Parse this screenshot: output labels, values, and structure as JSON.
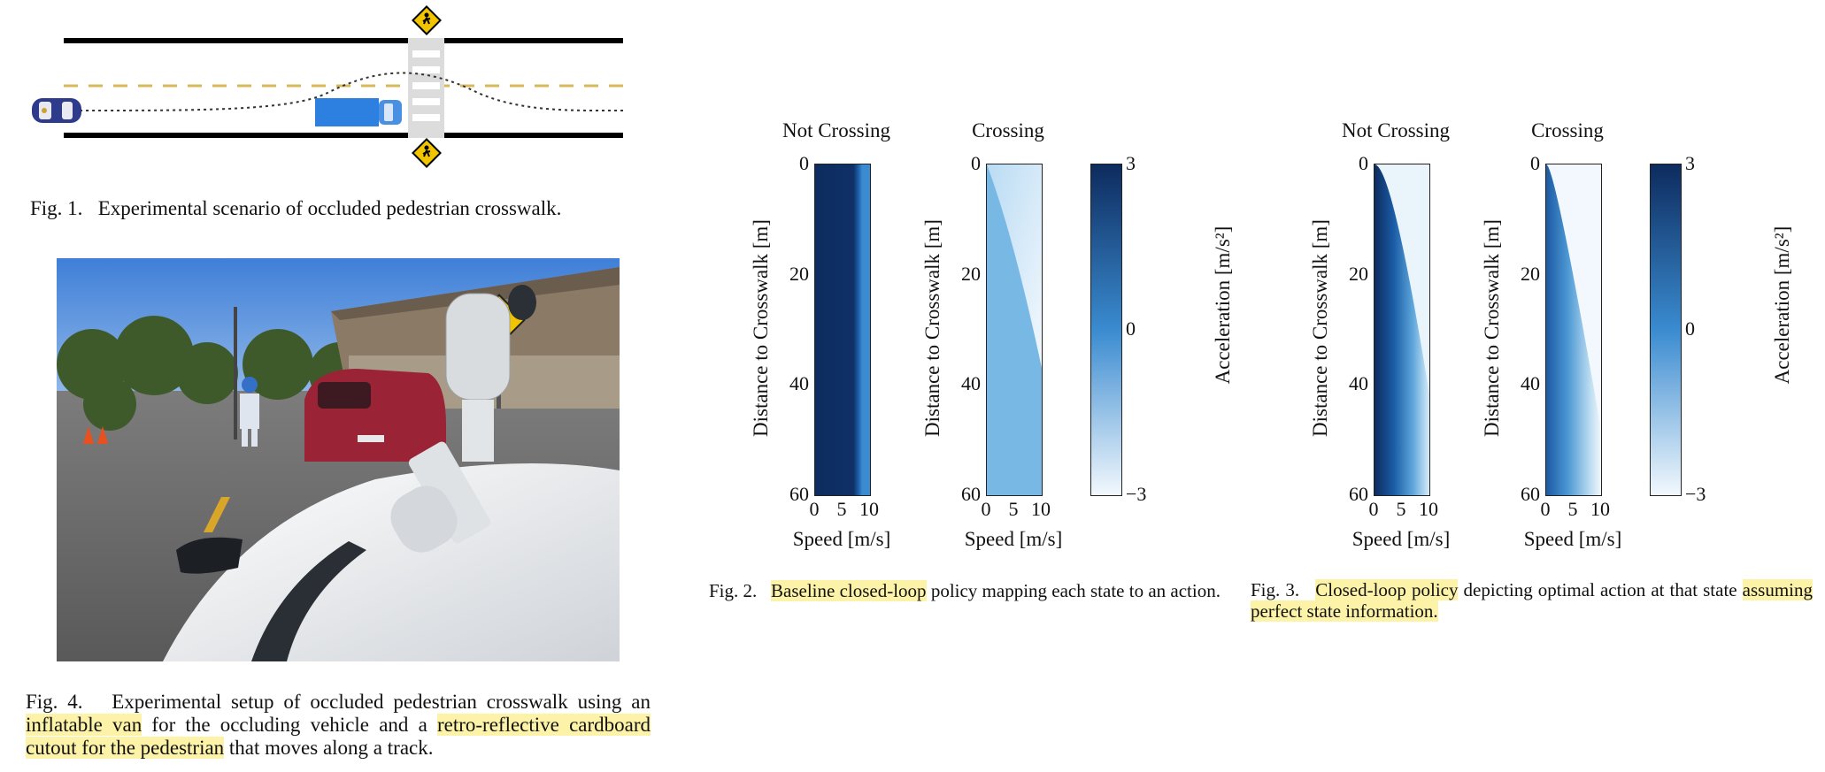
{
  "fig1": {
    "caption_label": "Fig. 1.",
    "caption_text": "Experimental scenario of occluded pedestrian crosswalk."
  },
  "fig4": {
    "caption_label": "Fig. 4.",
    "caption_parts": [
      {
        "text": "Experimental setup of occluded pedestrian crosswalk using an ",
        "hl": false
      },
      {
        "text": "inflatable van",
        "hl": true
      },
      {
        "text": " for the occluding vehicle and a ",
        "hl": false
      },
      {
        "text": "retro-reflective cardboard cutout for the pedestrian",
        "hl": true
      },
      {
        "text": " that moves along a track.",
        "hl": false
      }
    ]
  },
  "fig2": {
    "caption_label": "Fig. 2.",
    "caption_hl": "Baseline closed-loop",
    "caption_rest": " policy mapping each state to an action.",
    "panels": [
      {
        "title": "Not Crossing",
        "ylabel": "Distance to Crosswalk [m]",
        "xlabel": "Speed [m/s]"
      },
      {
        "title": "Crossing",
        "ylabel": "Distance to Crosswalk [m]",
        "xlabel": "Speed [m/s]"
      }
    ],
    "colorbar": {
      "label": "Acceleration [m/s²]",
      "ticks": [
        "3",
        "0",
        "−3"
      ]
    }
  },
  "fig3": {
    "caption_label": "Fig. 3.",
    "caption_hl1": "Closed-loop policy",
    "caption_mid": " depicting optimal action at that state ",
    "caption_hl2": "assuming perfect state information.",
    "panels": [
      {
        "title": "Not Crossing",
        "ylabel": "Distance to Crosswalk [m]",
        "xlabel": "Speed [m/s]"
      },
      {
        "title": "Crossing",
        "ylabel": "Distance to Crosswalk [m]",
        "xlabel": "Speed [m/s]"
      }
    ],
    "colorbar": {
      "label": "Acceleration [m/s²]",
      "ticks": [
        "3",
        "0",
        "−3"
      ]
    }
  },
  "axes": {
    "y_ticks": [
      "0",
      "20",
      "40",
      "60"
    ],
    "x_ticks": [
      "0",
      "5",
      "10"
    ]
  },
  "colors": {
    "colormap_high": "#0d2b5e",
    "colormap_low": "#f2f8fd",
    "highlight": "#fdf3a8",
    "road_line": "#d9b85a"
  }
}
